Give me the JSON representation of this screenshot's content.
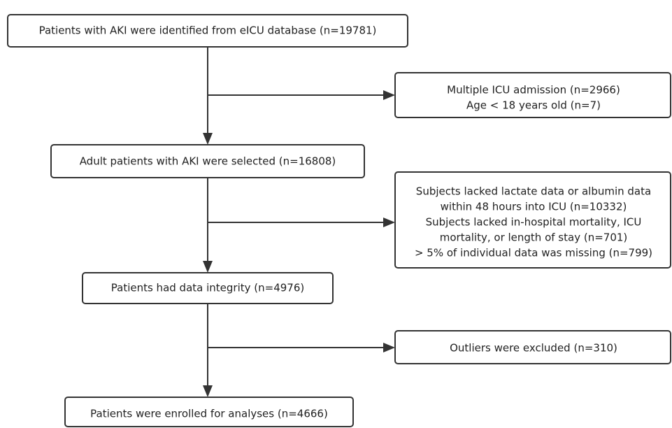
{
  "steps": [
    {
      "label": "Patients with AKI were identified from eICU database (n=19781)"
    },
    {
      "label": "Adult patients with AKI were selected (n=16808)"
    },
    {
      "label": "Patients had data integrity (n=4976)"
    },
    {
      "label": "Patients were enrolled for analyses (n=4666)"
    }
  ],
  "exclusions": [
    {
      "lines": [
        "Multiple ICU admission (n=2966)",
        "Age < 18 years old (n=7)"
      ]
    },
    {
      "lines": [
        "Subjects lacked lactate data or albumin data",
        "within 48 hours into ICU (n=10332)",
        "Subjects lacked in-hospital mortality, ICU",
        "mortality, or length of stay (n=701)",
        "> 5% of individual data was missing (n=799)"
      ]
    },
    {
      "lines": [
        "Outliers were excluded (n=310)"
      ]
    }
  ]
}
